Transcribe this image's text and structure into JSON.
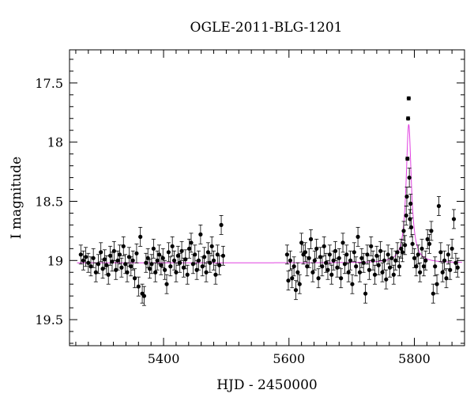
{
  "chart_data": {
    "type": "scatter",
    "title": "OGLE-2011-BLG-1201",
    "xlabel": "HJD - 2450000",
    "ylabel": "I magnitude",
    "xlim": [
      5250,
      5880
    ],
    "ylim": [
      19.72,
      17.22
    ],
    "y_inverted": true,
    "grid": false,
    "x_ticks": [
      5400,
      5600,
      5800
    ],
    "y_ticks": [
      17.5,
      18,
      18.5,
      19,
      19.5
    ],
    "x_tick_labels": [
      "5400",
      "5600",
      "5800"
    ],
    "y_tick_labels": [
      "17.5",
      "18",
      "18.5",
      "19",
      "19.5"
    ],
    "colors": {
      "points": "#000000",
      "model": "#e040e0"
    },
    "model": {
      "baseline": 19.02,
      "t0": 5791,
      "peak": 17.85,
      "width": 5
    },
    "series": [
      {
        "points": [
          [
            5268,
            18.95
          ],
          [
            5272,
            19.0
          ],
          [
            5276,
            18.97
          ],
          [
            5280,
            19.02
          ],
          [
            5284,
            19.05
          ],
          [
            5288,
            18.98
          ],
          [
            5292,
            19.1
          ],
          [
            5296,
            19.03
          ],
          [
            5300,
            18.93
          ],
          [
            5303,
            19.07
          ],
          [
            5306,
            18.99
          ],
          [
            5309,
            19.04
          ],
          [
            5312,
            19.12
          ],
          [
            5315,
            18.96
          ],
          [
            5318,
            19.01
          ],
          [
            5321,
            18.92
          ],
          [
            5324,
            19.08
          ],
          [
            5327,
            19.0
          ],
          [
            5330,
            18.95
          ],
          [
            5333,
            19.06
          ],
          [
            5336,
            18.88
          ],
          [
            5339,
            19.03
          ],
          [
            5342,
            19.1
          ],
          [
            5345,
            18.97
          ],
          [
            5348,
            19.05
          ],
          [
            5351,
            19.0
          ],
          [
            5354,
            19.15
          ],
          [
            5357,
            18.94
          ],
          [
            5360,
            19.22
          ],
          [
            5363,
            18.8
          ],
          [
            5366,
            19.28
          ],
          [
            5369,
            19.3
          ],
          [
            5372,
            19.02
          ],
          [
            5375,
            18.98
          ],
          [
            5378,
            19.07
          ],
          [
            5381,
            19.03
          ],
          [
            5384,
            18.9
          ],
          [
            5387,
            19.1
          ],
          [
            5390,
            19.0
          ],
          [
            5393,
            18.95
          ],
          [
            5396,
            19.04
          ],
          [
            5399,
            18.98
          ],
          [
            5402,
            19.08
          ],
          [
            5405,
            19.2
          ],
          [
            5408,
            18.93
          ],
          [
            5411,
            19.05
          ],
          [
            5414,
            18.88
          ],
          [
            5417,
            19.0
          ],
          [
            5420,
            19.1
          ],
          [
            5423,
            18.96
          ],
          [
            5426,
            19.02
          ],
          [
            5429,
            18.92
          ],
          [
            5432,
            19.06
          ],
          [
            5435,
            18.99
          ],
          [
            5438,
            19.12
          ],
          [
            5441,
            18.9
          ],
          [
            5444,
            18.85
          ],
          [
            5447,
            19.03
          ],
          [
            5450,
            18.95
          ],
          [
            5453,
            19.08
          ],
          [
            5456,
            19.0
          ],
          [
            5459,
            18.78
          ],
          [
            5462,
            19.05
          ],
          [
            5465,
            18.97
          ],
          [
            5468,
            19.1
          ],
          [
            5471,
            18.93
          ],
          [
            5474,
            19.02
          ],
          [
            5477,
            18.88
          ],
          [
            5480,
            19.0
          ],
          [
            5483,
            19.12
          ],
          [
            5486,
            18.95
          ],
          [
            5489,
            19.04
          ],
          [
            5492,
            18.7
          ],
          [
            5495,
            18.96
          ],
          [
            5597,
            18.95
          ],
          [
            5599,
            19.17
          ],
          [
            5602,
            19.0
          ],
          [
            5605,
            19.15
          ],
          [
            5608,
            19.05
          ],
          [
            5611,
            19.25
          ],
          [
            5614,
            19.1
          ],
          [
            5617,
            19.2
          ],
          [
            5620,
            18.85
          ],
          [
            5623,
            18.95
          ],
          [
            5626,
            18.93
          ],
          [
            5629,
            19.05
          ],
          [
            5632,
            18.98
          ],
          [
            5635,
            18.82
          ],
          [
            5638,
            19.1
          ],
          [
            5641,
            19.0
          ],
          [
            5644,
            18.9
          ],
          [
            5647,
            19.15
          ],
          [
            5650,
            18.97
          ],
          [
            5653,
            19.05
          ],
          [
            5656,
            18.88
          ],
          [
            5659,
            19.02
          ],
          [
            5662,
            19.08
          ],
          [
            5665,
            18.95
          ],
          [
            5668,
            19.12
          ],
          [
            5671,
            19.0
          ],
          [
            5674,
            18.92
          ],
          [
            5677,
            19.06
          ],
          [
            5680,
            18.98
          ],
          [
            5683,
            19.15
          ],
          [
            5686,
            18.85
          ],
          [
            5689,
            19.03
          ],
          [
            5692,
            18.95
          ],
          [
            5695,
            19.1
          ],
          [
            5698,
            19.0
          ],
          [
            5701,
            19.2
          ],
          [
            5704,
            18.93
          ],
          [
            5707,
            19.05
          ],
          [
            5710,
            18.8
          ],
          [
            5713,
            19.1
          ],
          [
            5716,
            18.98
          ],
          [
            5719,
            19.02
          ],
          [
            5722,
            19.28
          ],
          [
            5725,
            18.95
          ],
          [
            5728,
            19.08
          ],
          [
            5731,
            18.88
          ],
          [
            5734,
            19.0
          ],
          [
            5737,
            19.12
          ],
          [
            5740,
            18.96
          ],
          [
            5743,
            19.04
          ],
          [
            5746,
            18.92
          ],
          [
            5749,
            19.1
          ],
          [
            5752,
            19.0
          ],
          [
            5755,
            19.16
          ],
          [
            5758,
            18.95
          ],
          [
            5761,
            19.06
          ],
          [
            5764,
            18.98
          ],
          [
            5767,
            19.12
          ],
          [
            5770,
            19.0
          ],
          [
            5773,
            18.93
          ],
          [
            5776,
            19.05
          ],
          [
            5779,
            18.9
          ],
          [
            5781,
            18.93
          ],
          [
            5783,
            18.75
          ],
          [
            5785,
            18.87
          ],
          [
            5787,
            18.62
          ],
          [
            5788,
            18.46
          ],
          [
            5789,
            18.14
          ],
          [
            5790,
            17.8
          ],
          [
            5791,
            17.63
          ],
          [
            5792,
            18.3
          ],
          [
            5793,
            18.65
          ],
          [
            5794,
            18.52
          ],
          [
            5795,
            18.72
          ],
          [
            5797,
            18.86
          ],
          [
            5800,
            18.98
          ],
          [
            5803,
            19.05
          ],
          [
            5806,
            18.95
          ],
          [
            5809,
            19.1
          ],
          [
            5812,
            18.9
          ],
          [
            5815,
            19.05
          ],
          [
            5818,
            19.0
          ],
          [
            5821,
            18.82
          ],
          [
            5824,
            18.86
          ],
          [
            5827,
            18.75
          ],
          [
            5830,
            19.28
          ],
          [
            5833,
            19.05
          ],
          [
            5836,
            19.2
          ],
          [
            5839,
            18.54
          ],
          [
            5842,
            18.93
          ],
          [
            5845,
            19.1
          ],
          [
            5848,
            19.0
          ],
          [
            5851,
            19.15
          ],
          [
            5854,
            18.95
          ],
          [
            5857,
            19.08
          ],
          [
            5860,
            18.9
          ],
          [
            5863,
            18.65
          ],
          [
            5866,
            19.02
          ],
          [
            5869,
            19.06
          ]
        ]
      }
    ]
  }
}
